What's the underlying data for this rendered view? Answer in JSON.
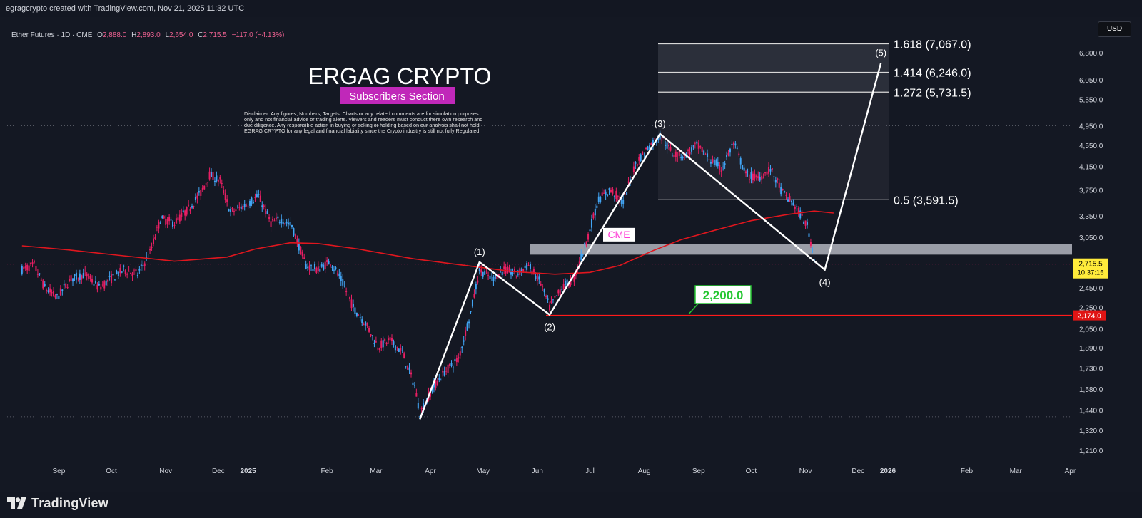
{
  "header": {
    "attribution": "egragcrypto created with TradingView.com, Nov 21, 2025 11:32 UTC",
    "symbol": "Ether Futures · 1D · CME",
    "ohlc": {
      "o_label": "O",
      "o": "2,888.0",
      "h_label": "H",
      "h": "2,893.0",
      "l_label": "L",
      "l": "2,654.0",
      "c_label": "C",
      "c": "2,715.5",
      "change": "−117.0 (−4.13%)"
    }
  },
  "currency_button": "USD",
  "brand": {
    "title": "ERGAG CRYPTO",
    "badge": "Subscribers Section",
    "disclaimer": [
      "Disclaimer: Any figures, Numbers, Targets, Charts or any related comments are for simulation purposes",
      "only and not financial advice or trading alerts. Viewers and readers must conduct there own research and",
      "due diligence. Any responsible action in buying or selling or holding based on our analysis shall not hold",
      "EGRAG CRYPTO for any legal and financial labiality since the Crypto industry is still not fully Regulated."
    ]
  },
  "footer": {
    "logo_text": "TradingView"
  },
  "colors": {
    "background": "#131722",
    "up": "#42a5f5",
    "down": "#e91e63",
    "ma": "#e0161e",
    "support": "#ff1a1a",
    "fib_zone": "#2a2e39",
    "cme_box": "#b2b5be",
    "label_green": "#26c632",
    "price_tag": "#ffeb3b",
    "cme_label": "#ff3bd6",
    "badge": "#c028b9"
  },
  "chart_data": {
    "type": "candlestick",
    "scale": "log",
    "ylim": [
      1150,
      7400
    ],
    "x_tick_labels": [
      "Sep",
      "Oct",
      "Nov",
      "Dec",
      "2025",
      "Feb",
      "Mar",
      "Apr",
      "May",
      "Jun",
      "Jul",
      "Aug",
      "Sep",
      "Oct",
      "Nov",
      "Dec",
      "2026",
      "Feb",
      "Mar",
      "Apr"
    ],
    "y_tick_labels": [
      6800,
      6050,
      5550,
      4950,
      4550,
      4150,
      3750,
      3350,
      3050,
      2450,
      2250,
      2050,
      1890,
      1730,
      1580,
      1440,
      1320,
      1210
    ],
    "price_tag": {
      "value": "2,715.5",
      "countdown": "10:37:15"
    },
    "support_tag": "2,174.0",
    "support_level": 2174,
    "fib_levels": [
      {
        "label": "1.618 (7,067.0)",
        "value": 7067
      },
      {
        "label": "1.414 (6,246.0)",
        "value": 6246
      },
      {
        "label": "1.272 (5,731.5)",
        "value": 5731.5
      },
      {
        "label": "0.5 (3,591.5)",
        "value": 3591.5
      }
    ],
    "wave_points": [
      {
        "label": "",
        "date": "2025-04-09",
        "price": 1385
      },
      {
        "label": "(1)",
        "date": "2025-05-13",
        "price": 2740
      },
      {
        "label": "(2)",
        "date": "2025-06-22",
        "price": 2180
      },
      {
        "label": "(3)",
        "date": "2025-08-24",
        "price": 4780
      },
      {
        "label": "(4)",
        "date": "2025-11-26",
        "price": 2650
      },
      {
        "label": "(5)",
        "date": "2025-12-28",
        "price": 6500
      }
    ],
    "cme_gap": {
      "label": "CME",
      "low": 2830,
      "high": 2960
    },
    "annotation": {
      "label": "2,200.0",
      "value": 2200
    },
    "ma_series": [
      [
        "2024-08-25",
        2940
      ],
      [
        "2024-09-20",
        2890
      ],
      [
        "2024-10-20",
        2820
      ],
      [
        "2024-11-20",
        2750
      ],
      [
        "2024-12-20",
        2800
      ],
      [
        "2025-01-05",
        2900
      ],
      [
        "2025-01-25",
        2980
      ],
      [
        "2025-02-10",
        2970
      ],
      [
        "2025-03-05",
        2900
      ],
      [
        "2025-04-05",
        2780
      ],
      [
        "2025-05-05",
        2700
      ],
      [
        "2025-06-01",
        2630
      ],
      [
        "2025-06-25",
        2600
      ],
      [
        "2025-07-15",
        2620
      ],
      [
        "2025-08-01",
        2700
      ],
      [
        "2025-08-20",
        2880
      ],
      [
        "2025-09-05",
        3020
      ],
      [
        "2025-09-25",
        3150
      ],
      [
        "2025-10-15",
        3280
      ],
      [
        "2025-11-05",
        3370
      ],
      [
        "2025-11-20",
        3420
      ],
      [
        "2025-12-01",
        3390
      ]
    ],
    "price_series": [
      [
        "2024-08-25",
        2650
      ],
      [
        "2024-09-01",
        2700
      ],
      [
        "2024-09-07",
        2450
      ],
      [
        "2024-09-14",
        2350
      ],
      [
        "2024-09-22",
        2550
      ],
      [
        "2024-09-30",
        2600
      ],
      [
        "2024-10-08",
        2450
      ],
      [
        "2024-10-15",
        2550
      ],
      [
        "2024-10-22",
        2650
      ],
      [
        "2024-10-30",
        2600
      ],
      [
        "2024-11-06",
        2850
      ],
      [
        "2024-11-12",
        3300
      ],
      [
        "2024-11-20",
        3250
      ],
      [
        "2024-11-28",
        3450
      ],
      [
        "2024-12-05",
        3700
      ],
      [
        "2024-12-10",
        4000
      ],
      [
        "2024-12-16",
        3900
      ],
      [
        "2024-12-22",
        3400
      ],
      [
        "2024-12-30",
        3500
      ],
      [
        "2025-01-07",
        3650
      ],
      [
        "2025-01-14",
        3250
      ],
      [
        "2025-01-20",
        3300
      ],
      [
        "2025-01-26",
        3200
      ],
      [
        "2025-02-03",
        2700
      ],
      [
        "2025-02-10",
        2650
      ],
      [
        "2025-02-17",
        2750
      ],
      [
        "2025-02-24",
        2500
      ],
      [
        "2025-03-02",
        2250
      ],
      [
        "2025-03-09",
        2100
      ],
      [
        "2025-03-16",
        1900
      ],
      [
        "2025-03-23",
        1950
      ],
      [
        "2025-03-30",
        1850
      ],
      [
        "2025-04-06",
        1600
      ],
      [
        "2025-04-09",
        1420
      ],
      [
        "2025-04-16",
        1580
      ],
      [
        "2025-04-23",
        1700
      ],
      [
        "2025-05-01",
        1800
      ],
      [
        "2025-05-08",
        2200
      ],
      [
        "2025-05-13",
        2650
      ],
      [
        "2025-05-20",
        2550
      ],
      [
        "2025-05-27",
        2650
      ],
      [
        "2025-06-03",
        2600
      ],
      [
        "2025-06-10",
        2700
      ],
      [
        "2025-06-17",
        2500
      ],
      [
        "2025-06-22",
        2250
      ],
      [
        "2025-06-29",
        2450
      ],
      [
        "2025-07-06",
        2550
      ],
      [
        "2025-07-13",
        3000
      ],
      [
        "2025-07-20",
        3600
      ],
      [
        "2025-07-27",
        3750
      ],
      [
        "2025-08-03",
        3550
      ],
      [
        "2025-08-10",
        4200
      ],
      [
        "2025-08-17",
        4500
      ],
      [
        "2025-08-24",
        4750
      ],
      [
        "2025-08-31",
        4400
      ],
      [
        "2025-09-07",
        4350
      ],
      [
        "2025-09-14",
        4550
      ],
      [
        "2025-09-21",
        4300
      ],
      [
        "2025-09-28",
        4100
      ],
      [
        "2025-10-05",
        4600
      ],
      [
        "2025-10-12",
        4000
      ],
      [
        "2025-10-19",
        3950
      ],
      [
        "2025-10-26",
        4100
      ],
      [
        "2025-11-02",
        3700
      ],
      [
        "2025-11-09",
        3500
      ],
      [
        "2025-11-16",
        3200
      ],
      [
        "2025-11-21",
        2715
      ]
    ]
  }
}
